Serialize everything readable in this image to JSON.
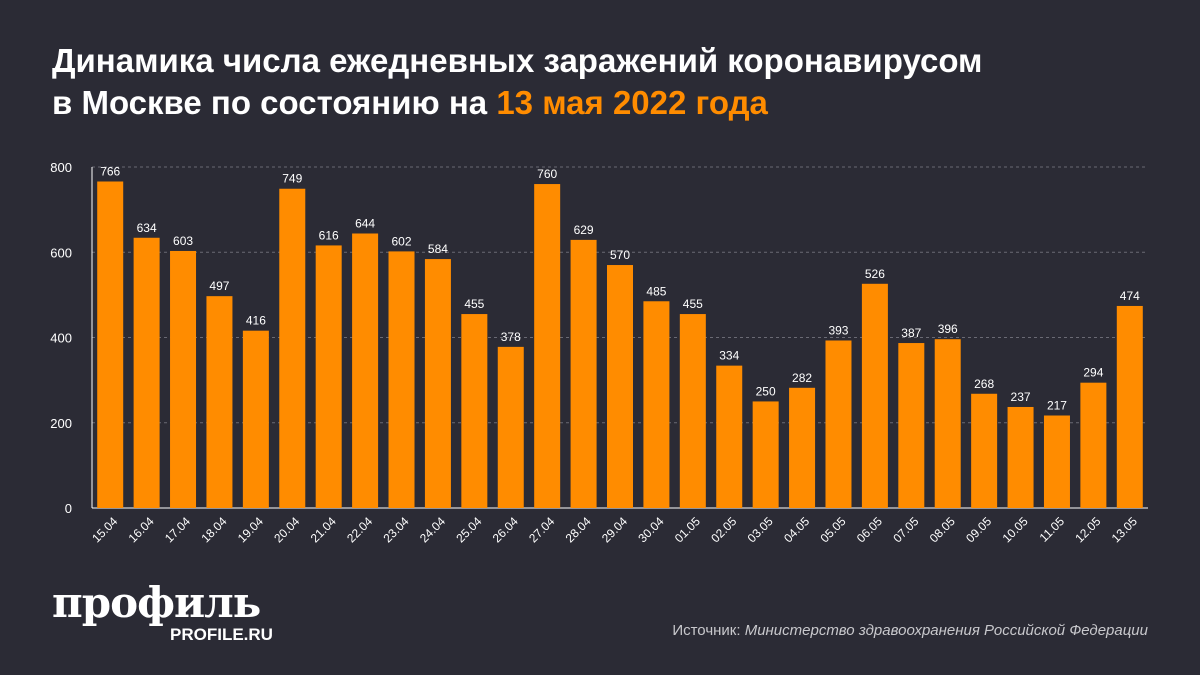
{
  "title": {
    "line1": "Динамика числа ежедневных заражений коронавирусом",
    "line2_prefix": "в Москве по состоянию на ",
    "line2_highlight": "13 мая 2022 года"
  },
  "colors": {
    "bar": "#ff8c00",
    "background": "#2b2b35",
    "highlight": "#ff8c00"
  },
  "chart_data": {
    "type": "bar",
    "categories": [
      "15.04",
      "16.04",
      "17.04",
      "18.04",
      "19.04",
      "20.04",
      "21.04",
      "22.04",
      "23.04",
      "24.04",
      "25.04",
      "26.04",
      "27.04",
      "28.04",
      "29.04",
      "30.04",
      "01.05",
      "02.05",
      "03.05",
      "04.05",
      "05.05",
      "06.05",
      "07.05",
      "08.05",
      "09.05",
      "10.05",
      "11.05",
      "12.05",
      "13.05"
    ],
    "values": [
      766,
      634,
      603,
      497,
      416,
      749,
      616,
      644,
      602,
      584,
      455,
      378,
      760,
      629,
      570,
      485,
      455,
      334,
      250,
      282,
      393,
      526,
      387,
      396,
      268,
      237,
      217,
      294,
      474
    ],
    "ylim": [
      0,
      800
    ],
    "yticks": [
      0,
      200,
      400,
      600,
      800
    ],
    "grid": true,
    "data_labels": true
  },
  "logo": {
    "main": "профиль",
    "sub": "PROFILE.RU"
  },
  "source": {
    "label": "Источник: ",
    "value": "Министерство здравоохранения Российской Федерации"
  }
}
